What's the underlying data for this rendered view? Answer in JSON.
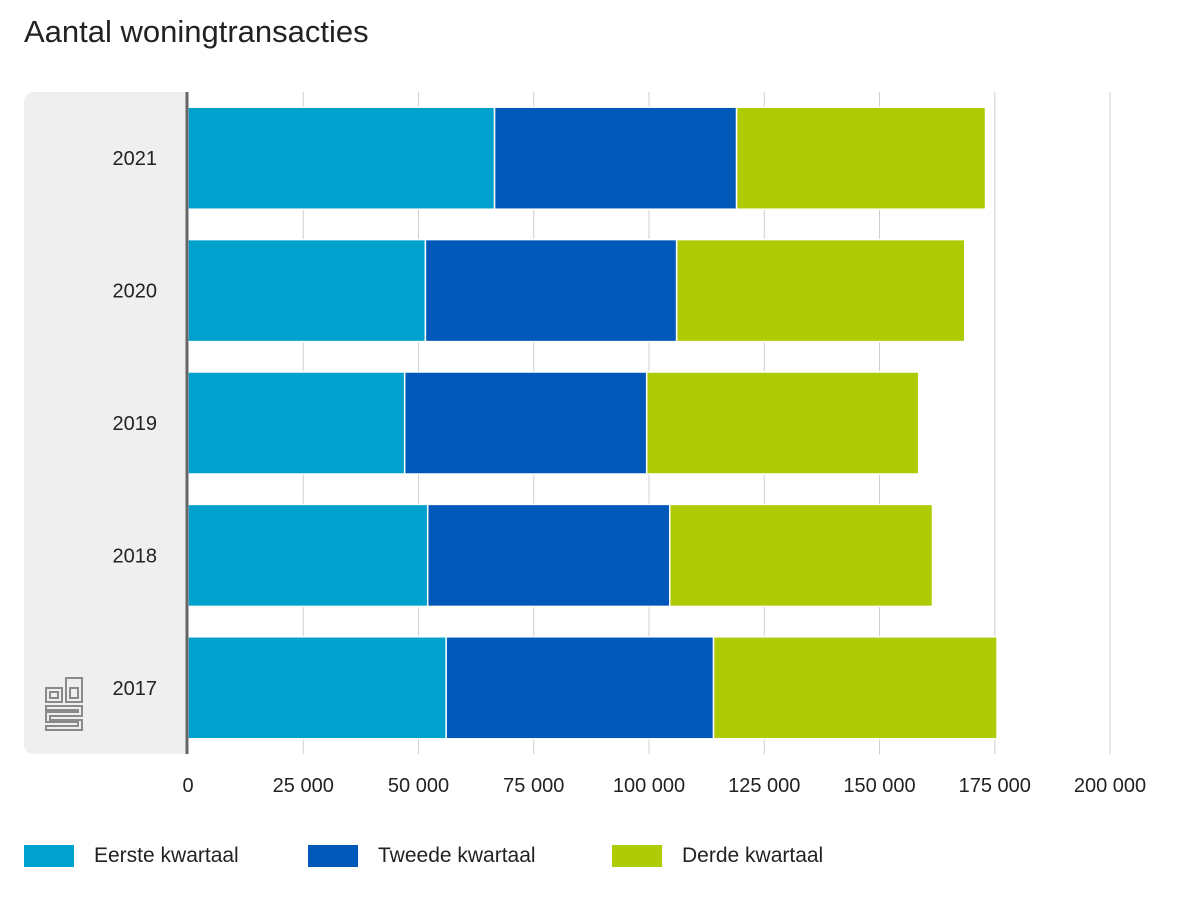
{
  "chart_data": {
    "type": "bar",
    "orientation": "horizontal",
    "stacked": true,
    "title": "Aantal woningtransacties",
    "categories": [
      "2021",
      "2020",
      "2019",
      "2018",
      "2017"
    ],
    "series": [
      {
        "name": "Eerste kwartaal",
        "color": "#00a1cd",
        "values": [
          66500,
          51500,
          47000,
          52000,
          56000
        ]
      },
      {
        "name": "Tweede kwartaal",
        "color": "#0058b8",
        "values": [
          52500,
          54500,
          52500,
          52500,
          58000
        ]
      },
      {
        "name": "Derde kwartaal",
        "color": "#afcb05",
        "values": [
          54000,
          62500,
          59000,
          57000,
          61500
        ]
      }
    ],
    "xlim": [
      0,
      200000
    ],
    "x_ticks": [
      0,
      25000,
      50000,
      75000,
      100000,
      125000,
      150000,
      175000,
      200000
    ],
    "x_tick_labels": [
      "0",
      "25 000",
      "50 000",
      "75 000",
      "100 000",
      "125 000",
      "150 000",
      "175 000",
      "200 000"
    ],
    "grid": true,
    "legend_position": "bottom-left"
  },
  "logo_icon": "cbs-logo"
}
